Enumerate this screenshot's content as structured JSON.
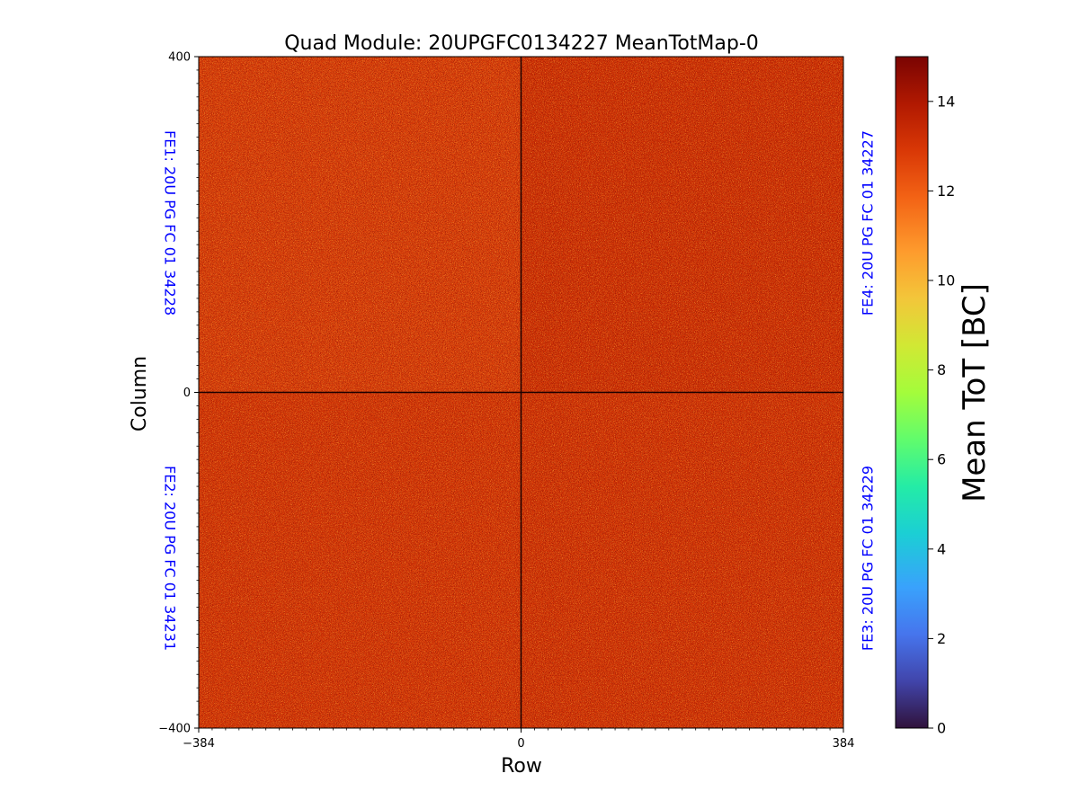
{
  "chart_data": {
    "type": "heatmap",
    "title": "Quad Module: 20UPGFC0134227 MeanTotMap-0",
    "xlabel": "Row",
    "ylabel": "Column",
    "xlim": [
      -384,
      384
    ],
    "ylim": [
      -400,
      400
    ],
    "x_ticks": [
      "−384",
      "0",
      "384"
    ],
    "y_ticks": [
      "400",
      "0",
      "−400"
    ],
    "colorbar": {
      "label": "Mean ToT [BC]",
      "range": [
        0,
        15
      ],
      "ticks": [
        "0",
        "2",
        "4",
        "6",
        "8",
        "10",
        "12",
        "14"
      ],
      "colormap": "turbo"
    },
    "chips": [
      {
        "label": "FE1: 20U PG FC 01 34228",
        "quadrant": "top-left",
        "x_range": [
          -384,
          0
        ],
        "y_range": [
          0,
          400
        ],
        "mean_tot": 12.6
      },
      {
        "label": "FE4: 20U PG FC 01 34227",
        "quadrant": "top-right",
        "x_range": [
          0,
          384
        ],
        "y_range": [
          0,
          400
        ],
        "mean_tot": 13.0
      },
      {
        "label": "FE2: 20U PG FC 01 34231",
        "quadrant": "bottom-left",
        "x_range": [
          -384,
          0
        ],
        "y_range": [
          -400,
          0
        ],
        "mean_tot": 12.8
      },
      {
        "label": "FE3: 20U PG FC 01 34229",
        "quadrant": "bottom-right",
        "x_range": [
          0,
          384
        ],
        "y_range": [
          -400,
          0
        ],
        "mean_tot": 12.9
      }
    ]
  }
}
